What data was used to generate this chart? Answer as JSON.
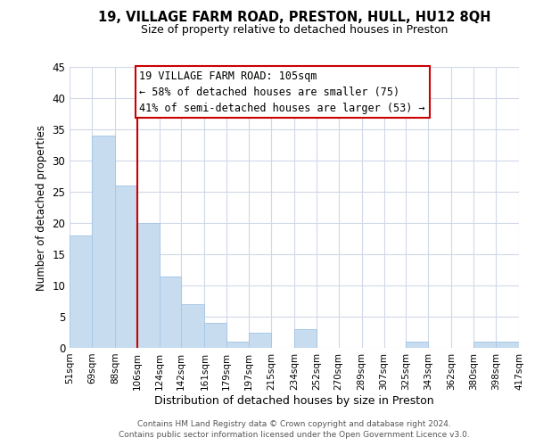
{
  "title": "19, VILLAGE FARM ROAD, PRESTON, HULL, HU12 8QH",
  "subtitle": "Size of property relative to detached houses in Preston",
  "xlabel": "Distribution of detached houses by size in Preston",
  "ylabel": "Number of detached properties",
  "bar_color": "#c8dcf0",
  "bar_edge_color": "#a8c8e8",
  "vline_x": 106,
  "vline_color": "#cc0000",
  "bins_left": [
    51,
    69,
    88,
    106,
    124,
    142,
    161,
    179,
    197,
    215,
    234,
    252,
    270,
    289,
    307,
    325,
    343,
    362,
    380,
    398
  ],
  "bins_right": [
    69,
    88,
    106,
    124,
    142,
    161,
    179,
    197,
    215,
    234,
    252,
    270,
    289,
    307,
    325,
    343,
    362,
    380,
    398,
    417
  ],
  "heights": [
    18,
    34,
    26,
    20,
    11.5,
    7,
    4,
    1,
    2.5,
    0,
    3,
    0,
    0,
    0,
    0,
    1,
    0,
    0,
    1,
    1
  ],
  "tick_labels": [
    "51sqm",
    "69sqm",
    "88sqm",
    "106sqm",
    "124sqm",
    "142sqm",
    "161sqm",
    "179sqm",
    "197sqm",
    "215sqm",
    "234sqm",
    "252sqm",
    "270sqm",
    "289sqm",
    "307sqm",
    "325sqm",
    "343sqm",
    "362sqm",
    "380sqm",
    "398sqm",
    "417sqm"
  ],
  "ylim": [
    0,
    45
  ],
  "yticks": [
    0,
    5,
    10,
    15,
    20,
    25,
    30,
    35,
    40,
    45
  ],
  "annotation_line1": "19 VILLAGE FARM ROAD: 105sqm",
  "annotation_line2": "← 58% of detached houses are smaller (75)",
  "annotation_line3": "41% of semi-detached houses are larger (53) →",
  "footer_line1": "Contains HM Land Registry data © Crown copyright and database right 2024.",
  "footer_line2": "Contains public sector information licensed under the Open Government Licence v3.0.",
  "background_color": "#ffffff",
  "grid_color": "#d0d8e8",
  "annotation_box_color": "#cc0000",
  "title_fontsize": 10.5,
  "subtitle_fontsize": 9,
  "ylabel_fontsize": 8.5,
  "xlabel_fontsize": 9,
  "ytick_fontsize": 8.5,
  "xtick_fontsize": 7.5,
  "annotation_fontsize": 8.5,
  "footer_fontsize": 6.5
}
